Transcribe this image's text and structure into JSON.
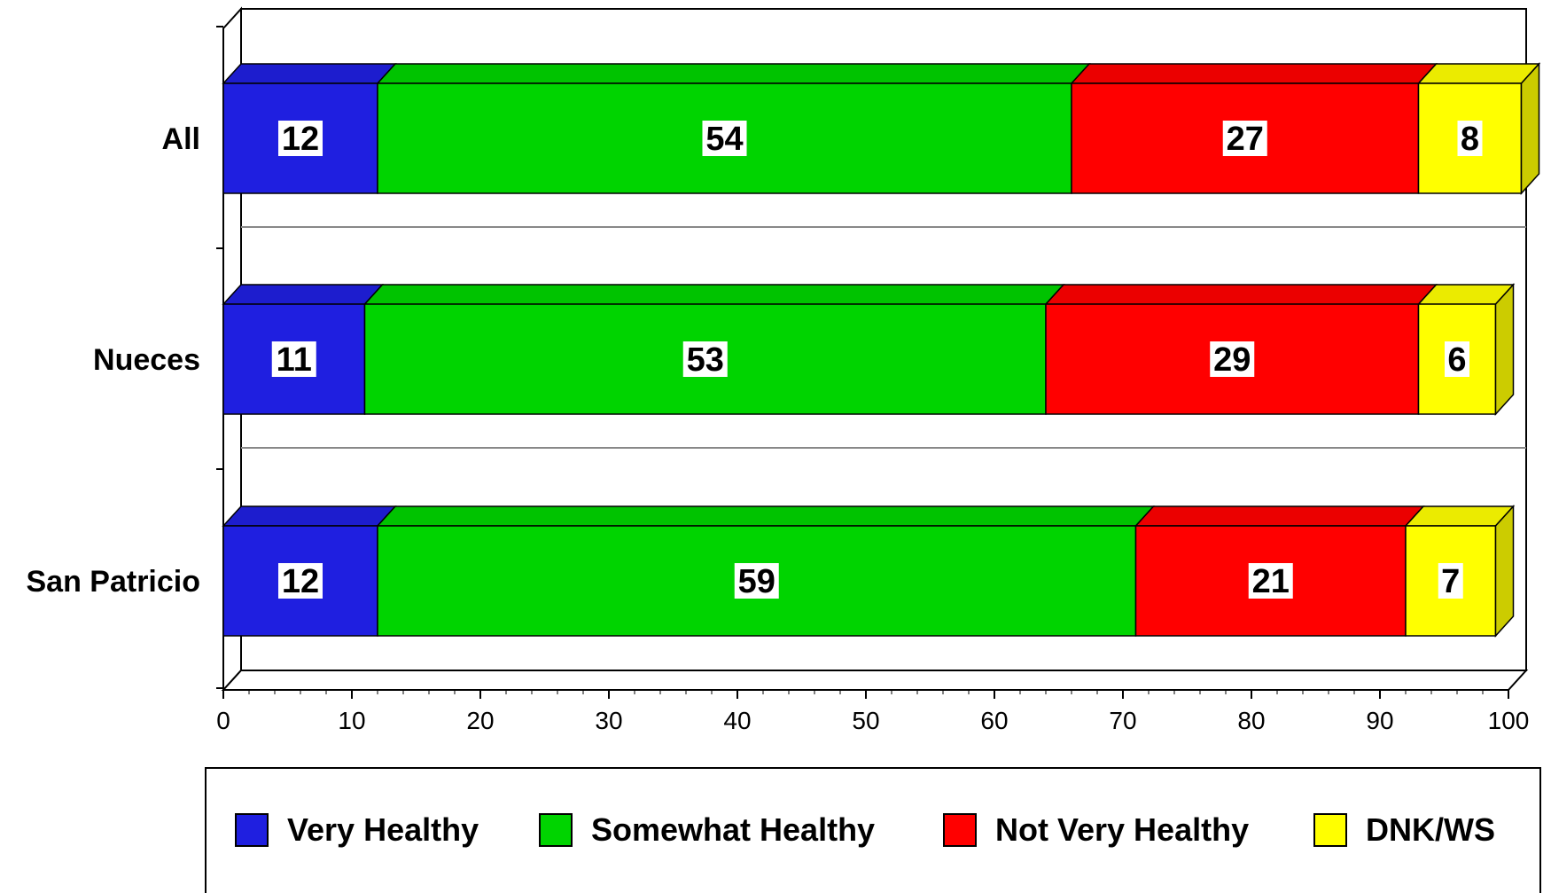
{
  "chart_data": {
    "type": "bar",
    "orientation": "horizontal",
    "stacked": true,
    "style": "3d",
    "categories": [
      "All",
      "Nueces",
      "San Patricio"
    ],
    "series": [
      {
        "name": "Very Healthy",
        "color": "#1f1fe0",
        "values": [
          12,
          11,
          12
        ]
      },
      {
        "name": "Somewhat Healthy",
        "color": "#00d400",
        "values": [
          54,
          53,
          59
        ]
      },
      {
        "name": "Not Very Healthy",
        "color": "#ff0000",
        "values": [
          27,
          29,
          21
        ]
      },
      {
        "name": "DNK/WS",
        "color": "#ffff00",
        "values": [
          8,
          6,
          7
        ]
      }
    ],
    "xlim": [
      0,
      100
    ],
    "xticks": [
      0,
      10,
      20,
      30,
      40,
      50,
      60,
      70,
      80,
      90,
      100
    ],
    "title": "",
    "xlabel": "",
    "ylabel": "",
    "legend_position": "bottom",
    "grid": false
  }
}
